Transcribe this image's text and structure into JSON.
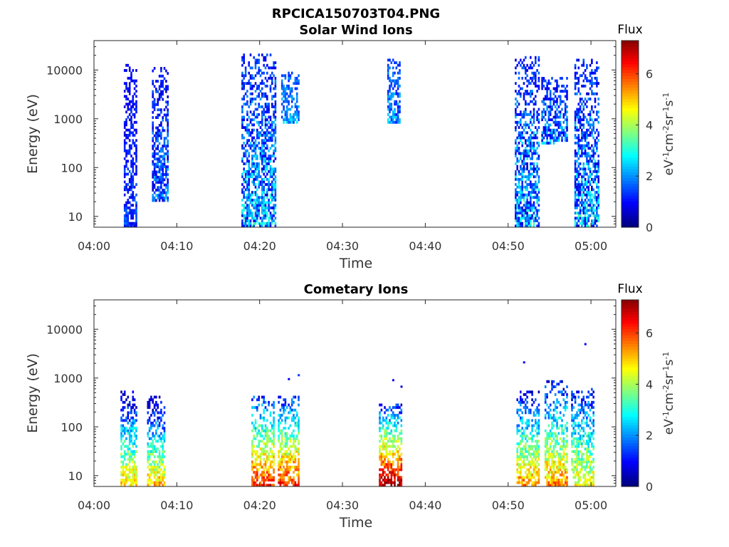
{
  "figure_title": "RPCICA150703T04.PNG",
  "panels": [
    {
      "title": "Solar Wind Ions",
      "xlabel": "Time",
      "ylabel": "Energy (eV)",
      "x_ticks": [
        "04:00",
        "04:10",
        "04:20",
        "04:30",
        "04:40",
        "04:50",
        "05:00"
      ],
      "y_ticks": [
        "10",
        "100",
        "1000",
        "10000"
      ],
      "colorbar": {
        "title": "Flux",
        "ticks": [
          "0",
          "2",
          "4",
          "6"
        ]
      }
    },
    {
      "title": "Cometary Ions",
      "xlabel": "Time",
      "ylabel": "Energy (eV)",
      "x_ticks": [
        "04:00",
        "04:10",
        "04:20",
        "04:30",
        "04:40",
        "04:50",
        "05:00"
      ],
      "y_ticks": [
        "10",
        "100",
        "1000",
        "10000"
      ],
      "colorbar": {
        "title": "Flux",
        "ticks": [
          "0",
          "2",
          "4",
          "6"
        ]
      }
    }
  ],
  "colorbar_unit_parts": [
    "eV",
    "-1",
    "cm",
    "-2",
    "sr",
    "-1",
    "s",
    "-1"
  ],
  "chart_data": [
    {
      "type": "heatmap",
      "title": "Solar Wind Ions",
      "xlabel": "Time",
      "ylabel": "Energy (eV)",
      "x_unit": "minutes after 04:00",
      "xlim": [
        0,
        63
      ],
      "ylim": [
        6,
        40000
      ],
      "yscale": "log",
      "colorbar_range": [
        0,
        7.3
      ],
      "colormap": "jet",
      "bursts": [
        {
          "t": [
            3.6,
            5.2
          ],
          "e": [
            6,
            13000
          ],
          "flux": [
            0.6,
            1.8
          ]
        },
        {
          "t": [
            7.0,
            8.8
          ],
          "e": [
            20,
            11000
          ],
          "flux": [
            0.5,
            2.6
          ]
        },
        {
          "t": [
            17.8,
            21.8
          ],
          "e": [
            6,
            20000
          ],
          "flux": [
            0.5,
            3.4
          ]
        },
        {
          "t": [
            22.6,
            24.6
          ],
          "e": [
            800,
            9000
          ],
          "flux": [
            1.2,
            2.8
          ]
        },
        {
          "t": [
            35.4,
            37.0
          ],
          "e": [
            800,
            16000
          ],
          "flux": [
            1.0,
            2.8
          ]
        },
        {
          "t": [
            50.8,
            53.8
          ],
          "e": [
            6,
            19000
          ],
          "flux": [
            0.5,
            3.4
          ]
        },
        {
          "t": [
            54.0,
            57.2
          ],
          "e": [
            300,
            7000
          ],
          "flux": [
            0.6,
            2.8
          ]
        },
        {
          "t": [
            58.0,
            61.0
          ],
          "e": [
            6,
            16000
          ],
          "flux": [
            0.5,
            3.4
          ]
        }
      ]
    },
    {
      "type": "heatmap",
      "title": "Cometary Ions",
      "xlabel": "Time",
      "ylabel": "Energy (eV)",
      "x_unit": "minutes after 04:00",
      "xlim": [
        0,
        63
      ],
      "ylim": [
        6,
        40000
      ],
      "yscale": "log",
      "colorbar_range": [
        0,
        7.3
      ],
      "colormap": "jet",
      "bursts": [
        {
          "t": [
            3.2,
            5.2
          ],
          "e": [
            6,
            500
          ],
          "flux": [
            1.0,
            5.0
          ]
        },
        {
          "t": [
            6.4,
            8.6
          ],
          "e": [
            6,
            400
          ],
          "flux": [
            1.0,
            5.0
          ]
        },
        {
          "t": [
            19.0,
            21.6
          ],
          "e": [
            6,
            400
          ],
          "flux": [
            2.0,
            6.2
          ]
        },
        {
          "t": [
            22.2,
            24.6
          ],
          "e": [
            6,
            400
          ],
          "flux": [
            2.0,
            6.2
          ]
        },
        {
          "t": [
            34.4,
            37.2
          ],
          "e": [
            6,
            300
          ],
          "flux": [
            2.0,
            7.2
          ]
        },
        {
          "t": [
            51.0,
            53.8
          ],
          "e": [
            6,
            500
          ],
          "flux": [
            1.5,
            5.4
          ]
        },
        {
          "t": [
            54.4,
            57.2
          ],
          "e": [
            6,
            900
          ],
          "flux": [
            1.5,
            5.4
          ]
        },
        {
          "t": [
            57.6,
            60.4
          ],
          "e": [
            6,
            600
          ],
          "flux": [
            1.5,
            4.6
          ]
        }
      ],
      "isolated_points": [
        {
          "t": 23.4,
          "e": 1000,
          "flux": 0.8
        },
        {
          "t": 24.6,
          "e": 1200,
          "flux": 1.3
        },
        {
          "t": 36.0,
          "e": 950,
          "flux": 0.8
        },
        {
          "t": 37.0,
          "e": 700,
          "flux": 0.6
        },
        {
          "t": 51.8,
          "e": 2200,
          "flux": 0.9
        },
        {
          "t": 59.2,
          "e": 5200,
          "flux": 0.9
        }
      ]
    }
  ]
}
